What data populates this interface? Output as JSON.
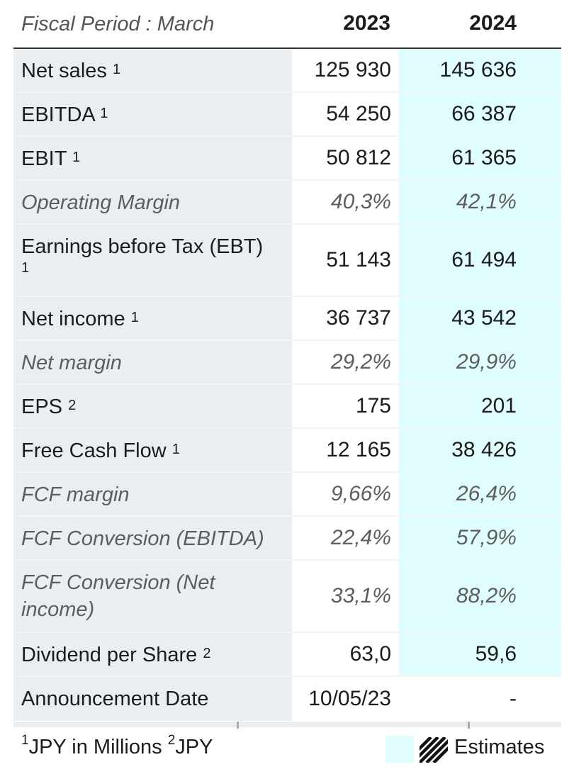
{
  "header": {
    "period_label": "Fiscal Period : March",
    "years": [
      "2023",
      "2024"
    ]
  },
  "rows": [
    {
      "label": "Net sales",
      "sup": "1",
      "v2023": "125 930",
      "v2024": "145 636",
      "italic": false
    },
    {
      "label": "EBITDA",
      "sup": "1",
      "v2023": "54 250",
      "v2024": "66 387",
      "italic": false
    },
    {
      "label": "EBIT",
      "sup": "1",
      "v2023": "50 812",
      "v2024": "61 365",
      "italic": false
    },
    {
      "label": "Operating Margin",
      "sup": "",
      "v2023": "40,3%",
      "v2024": "42,1%",
      "italic": true
    },
    {
      "label": "Earnings before Tax (EBT)",
      "sup": "1",
      "v2023": "51 143",
      "v2024": "61 494",
      "italic": false
    },
    {
      "label": "Net income",
      "sup": "1",
      "v2023": "36 737",
      "v2024": "43 542",
      "italic": false
    },
    {
      "label": "Net margin",
      "sup": "",
      "v2023": "29,2%",
      "v2024": "29,9%",
      "italic": true
    },
    {
      "label": "EPS",
      "sup": "2",
      "v2023": "175",
      "v2024": "201",
      "italic": false
    },
    {
      "label": "Free Cash Flow",
      "sup": "1",
      "v2023": "12 165",
      "v2024": "38 426",
      "italic": false
    },
    {
      "label": "FCF margin",
      "sup": "",
      "v2023": "9,66%",
      "v2024": "26,4%",
      "italic": true
    },
    {
      "label": "FCF Conversion (EBITDA)",
      "sup": "",
      "v2023": "22,4%",
      "v2024": "57,9%",
      "italic": true
    },
    {
      "label": "FCF Conversion (Net income)",
      "sup": "",
      "v2023": "33,1%",
      "v2024": "88,2%",
      "italic": true
    },
    {
      "label": "Dividend per Share",
      "sup": "2",
      "v2023": "63,0",
      "v2024": "59,6",
      "italic": false
    },
    {
      "label": "Announcement Date",
      "sup": "",
      "v2023": "10/05/23",
      "v2024": "-",
      "italic": false
    }
  ],
  "footnotes": {
    "note1_marker": "1",
    "note1_text": "JPY in Millions",
    "note2_marker": "2",
    "note2_text": "JPY"
  },
  "legend": {
    "label": "Estimates",
    "estimate_color": "#e0fdfd"
  }
}
